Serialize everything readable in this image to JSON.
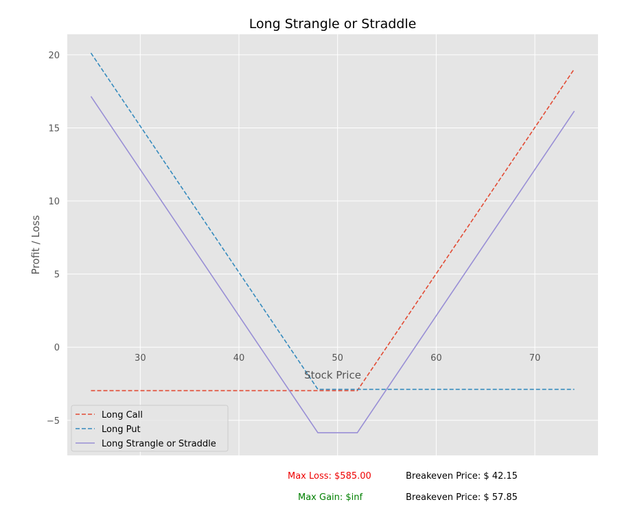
{
  "chart_data": {
    "type": "line",
    "title": "Long Strangle or Straddle",
    "xlabel": "Stock Price",
    "ylabel": "Profit / Loss",
    "xlim": [
      22.6,
      76.4
    ],
    "ylim": [
      -7.4,
      21.4
    ],
    "xticks": [
      30,
      40,
      50,
      60,
      70
    ],
    "yticks": [
      -5,
      0,
      5,
      10,
      15,
      20
    ],
    "grid": true,
    "legend_position": "lower-left",
    "series": [
      {
        "name": "Long Call",
        "style": "dashed",
        "color": "#E24A33",
        "x": [
          25,
          52,
          74
        ],
        "y": [
          -2.97,
          -2.97,
          19.03
        ]
      },
      {
        "name": "Long Put",
        "style": "dashed",
        "color": "#348ABD",
        "x": [
          25,
          48,
          74
        ],
        "y": [
          20.12,
          -2.88,
          -2.88
        ]
      },
      {
        "name": "Long Strangle or Straddle",
        "style": "solid",
        "color": "#988ED5",
        "x": [
          25,
          48,
          52,
          74
        ],
        "y": [
          17.15,
          -5.85,
          -5.85,
          16.15
        ]
      }
    ]
  },
  "footer": {
    "max_loss": "Max Loss: $585.00",
    "max_gain": "Max Gain: $inf",
    "breakeven_low": "Breakeven Price: $ 42.15",
    "breakeven_high": "Breakeven Price: $ 57.85",
    "loss_color": "#EE0000",
    "gain_color": "#008000"
  }
}
